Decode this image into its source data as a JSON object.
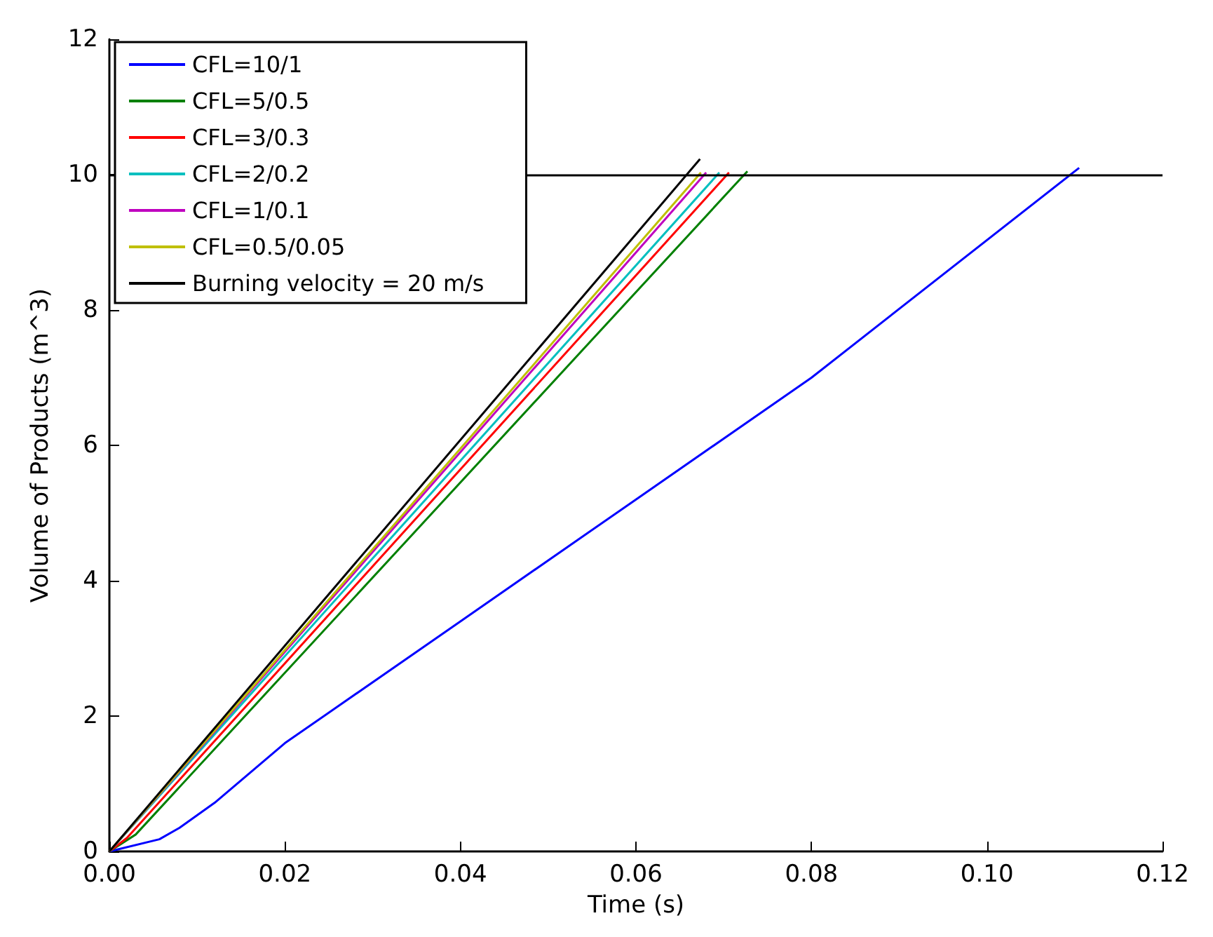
{
  "chart_data": {
    "type": "line",
    "xlabel": "Time (s)",
    "ylabel": "Volume of Products (m^3)",
    "xlim": [
      0,
      0.12
    ],
    "xticks": [
      {
        "value": 0,
        "label": "0.00"
      },
      {
        "value": 0.02,
        "label": "0.02"
      },
      {
        "value": 0.04,
        "label": "0.04"
      },
      {
        "value": 0.06,
        "label": "0.06"
      },
      {
        "value": 0.08,
        "label": "0.08"
      },
      {
        "value": 0.1,
        "label": "0.10"
      },
      {
        "value": 0.12,
        "label": "0.12"
      }
    ],
    "ylim": [
      0,
      12
    ],
    "yticks": [
      0,
      2,
      4,
      6,
      8,
      10,
      12
    ],
    "grid": false,
    "legend": "top left",
    "marker": "none",
    "line_style": "solid",
    "ref_lines": [
      {
        "axis": "y",
        "value": 10,
        "label": null,
        "color": "#000000"
      }
    ],
    "series": [
      {
        "name": "CFL=10/1",
        "color": "#0000ff",
        "x": [
          0,
          0.0057,
          0.008,
          0.012,
          0.02,
          0.04,
          0.06,
          0.08,
          0.1105
        ],
        "values": [
          0,
          0.18,
          0.35,
          0.72,
          1.6,
          3.4,
          5.2,
          7.0,
          10.1
        ]
      },
      {
        "name": "CFL=5/0.5",
        "color": "#008000",
        "x": [
          0,
          0.003,
          0.0727
        ],
        "values": [
          0,
          0.25,
          10.05
        ]
      },
      {
        "name": "CFL=3/0.3",
        "color": "#ff0000",
        "x": [
          0,
          0.002,
          0.0706
        ],
        "values": [
          0,
          0.2,
          10.03
        ]
      },
      {
        "name": "CFL=2/0.2",
        "color": "#00bfbf",
        "x": [
          0,
          0.0695
        ],
        "values": [
          0,
          10.03
        ]
      },
      {
        "name": "CFL=1/0.1",
        "color": "#bf00bf",
        "x": [
          0,
          0.068
        ],
        "values": [
          0,
          10.03
        ]
      },
      {
        "name": "CFL=0.5/0.05",
        "color": "#bfbf00",
        "x": [
          0,
          0.0674
        ],
        "values": [
          0,
          10.03
        ]
      },
      {
        "name": "Burning velocity = 20 m/s",
        "color": "#000000",
        "x": [
          0,
          0.0673
        ],
        "values": [
          0,
          10.23
        ]
      }
    ]
  }
}
